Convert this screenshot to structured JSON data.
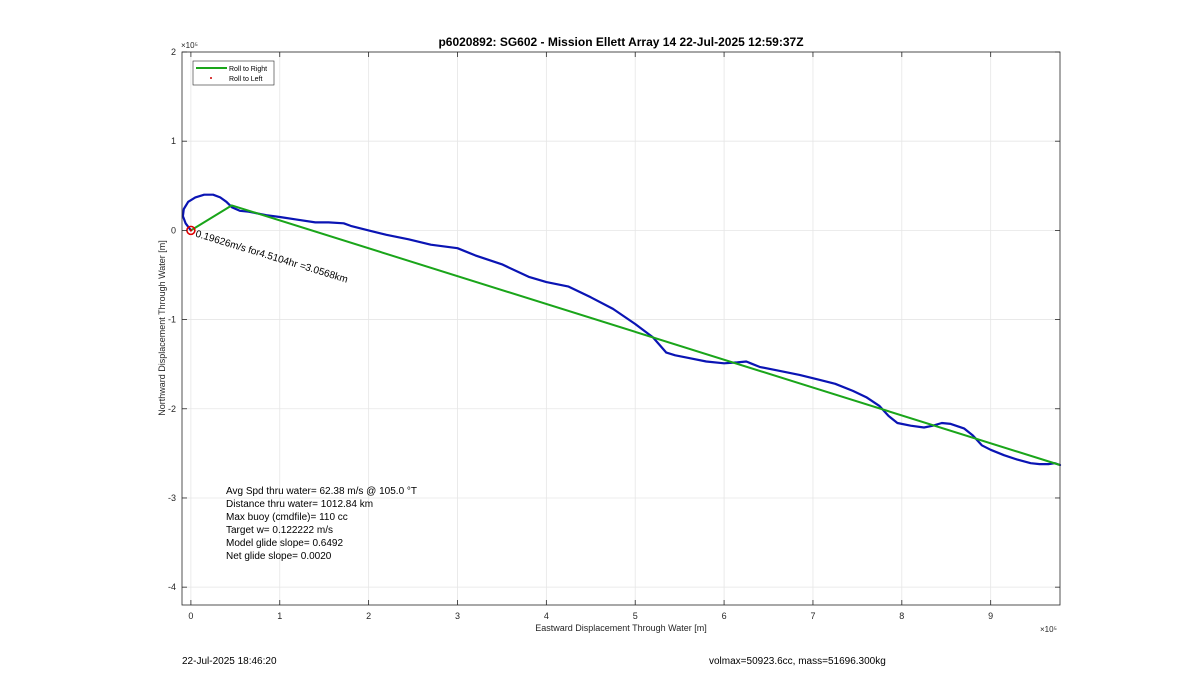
{
  "footer": {
    "timestamp": "22-Jul-2025 18:46:20",
    "model_info": "volmax=50923.6cc, mass=51696.300kg"
  },
  "chart_data": {
    "type": "line",
    "title": "p6020892: SG602 - Mission Ellett Array 14 22-Jul-2025 12:59:37Z",
    "xlabel": "Eastward Displacement Through Water [m]",
    "ylabel": "Northward Displacement Through Water [m]",
    "x_exponent_label": "×10⁵",
    "y_exponent_label": "×10⁵",
    "x_scale_factor": 100000,
    "y_scale_factor": 100000,
    "xlim": [
      -0.1,
      9.78
    ],
    "ylim": [
      -4.2,
      2.0
    ],
    "x_ticks": [
      0,
      1,
      2,
      3,
      4,
      5,
      6,
      7,
      8,
      9
    ],
    "y_ticks": [
      -4,
      -3,
      -2,
      -1,
      0,
      1,
      2
    ],
    "grid": true,
    "legend_placement": "top-left",
    "colors": {
      "track": "#0a14b4",
      "roll_right": "#1aa51a",
      "roll_left": "#cc0000",
      "start_marker": "#e00000"
    },
    "series": [
      {
        "name": "Roll to Right",
        "color": "#1aa51a",
        "x": [
          0.0,
          0.46,
          9.78
        ],
        "y": [
          0.0,
          0.28,
          -2.63
        ]
      },
      {
        "name": "Roll to Left",
        "color": "#cc0000",
        "x": [
          0.0
        ],
        "y": [
          0.0
        ]
      },
      {
        "name": "track",
        "color": "#0a14b4",
        "x": [
          0.0,
          -0.06,
          -0.09,
          -0.08,
          -0.03,
          0.05,
          0.15,
          0.25,
          0.33,
          0.4,
          0.46,
          0.55,
          0.65,
          0.75,
          0.85,
          1.0,
          1.2,
          1.4,
          1.55,
          1.72,
          1.8,
          2.0,
          2.2,
          2.45,
          2.7,
          3.0,
          3.2,
          3.5,
          3.8,
          4.0,
          4.25,
          4.5,
          4.75,
          5.0,
          5.2,
          5.35,
          5.45,
          5.6,
          5.8,
          6.0,
          6.15,
          6.25,
          6.3,
          6.4,
          6.6,
          6.85,
          7.05,
          7.25,
          7.45,
          7.6,
          7.75,
          7.85,
          7.95,
          8.1,
          8.25,
          8.35,
          8.45,
          8.55,
          8.7,
          8.8,
          8.9,
          9.0,
          9.15,
          9.3,
          9.45,
          9.55,
          9.65,
          9.72,
          9.78
        ],
        "y": [
          0.0,
          0.08,
          0.16,
          0.24,
          0.32,
          0.37,
          0.4,
          0.4,
          0.37,
          0.32,
          0.26,
          0.22,
          0.21,
          0.19,
          0.17,
          0.15,
          0.12,
          0.09,
          0.09,
          0.08,
          0.05,
          0.0,
          -0.05,
          -0.1,
          -0.16,
          -0.2,
          -0.28,
          -0.38,
          -0.52,
          -0.58,
          -0.63,
          -0.75,
          -0.88,
          -1.05,
          -1.2,
          -1.37,
          -1.4,
          -1.43,
          -1.47,
          -1.49,
          -1.48,
          -1.47,
          -1.49,
          -1.53,
          -1.57,
          -1.62,
          -1.67,
          -1.72,
          -1.8,
          -1.87,
          -1.97,
          -2.08,
          -2.16,
          -2.19,
          -2.21,
          -2.19,
          -2.16,
          -2.17,
          -2.22,
          -2.3,
          -2.41,
          -2.46,
          -2.52,
          -2.57,
          -2.61,
          -2.62,
          -2.62,
          -2.61,
          -2.63
        ]
      }
    ],
    "annotations": [
      {
        "text": "0.19626m/s for4.5104hr =3.0568km",
        "x": 0.0,
        "y": 0.0,
        "rotation_deg": -17
      }
    ],
    "stats": [
      "Avg Spd thru water= 62.38 m/s @ 105.0 °T",
      "Distance thru water= 1012.84 km",
      "Max buoy (cmdfile)= 110 cc",
      "Target w= 0.122222 m/s",
      "Model glide slope= 0.6492",
      "Net glide slope= 0.0020"
    ]
  }
}
